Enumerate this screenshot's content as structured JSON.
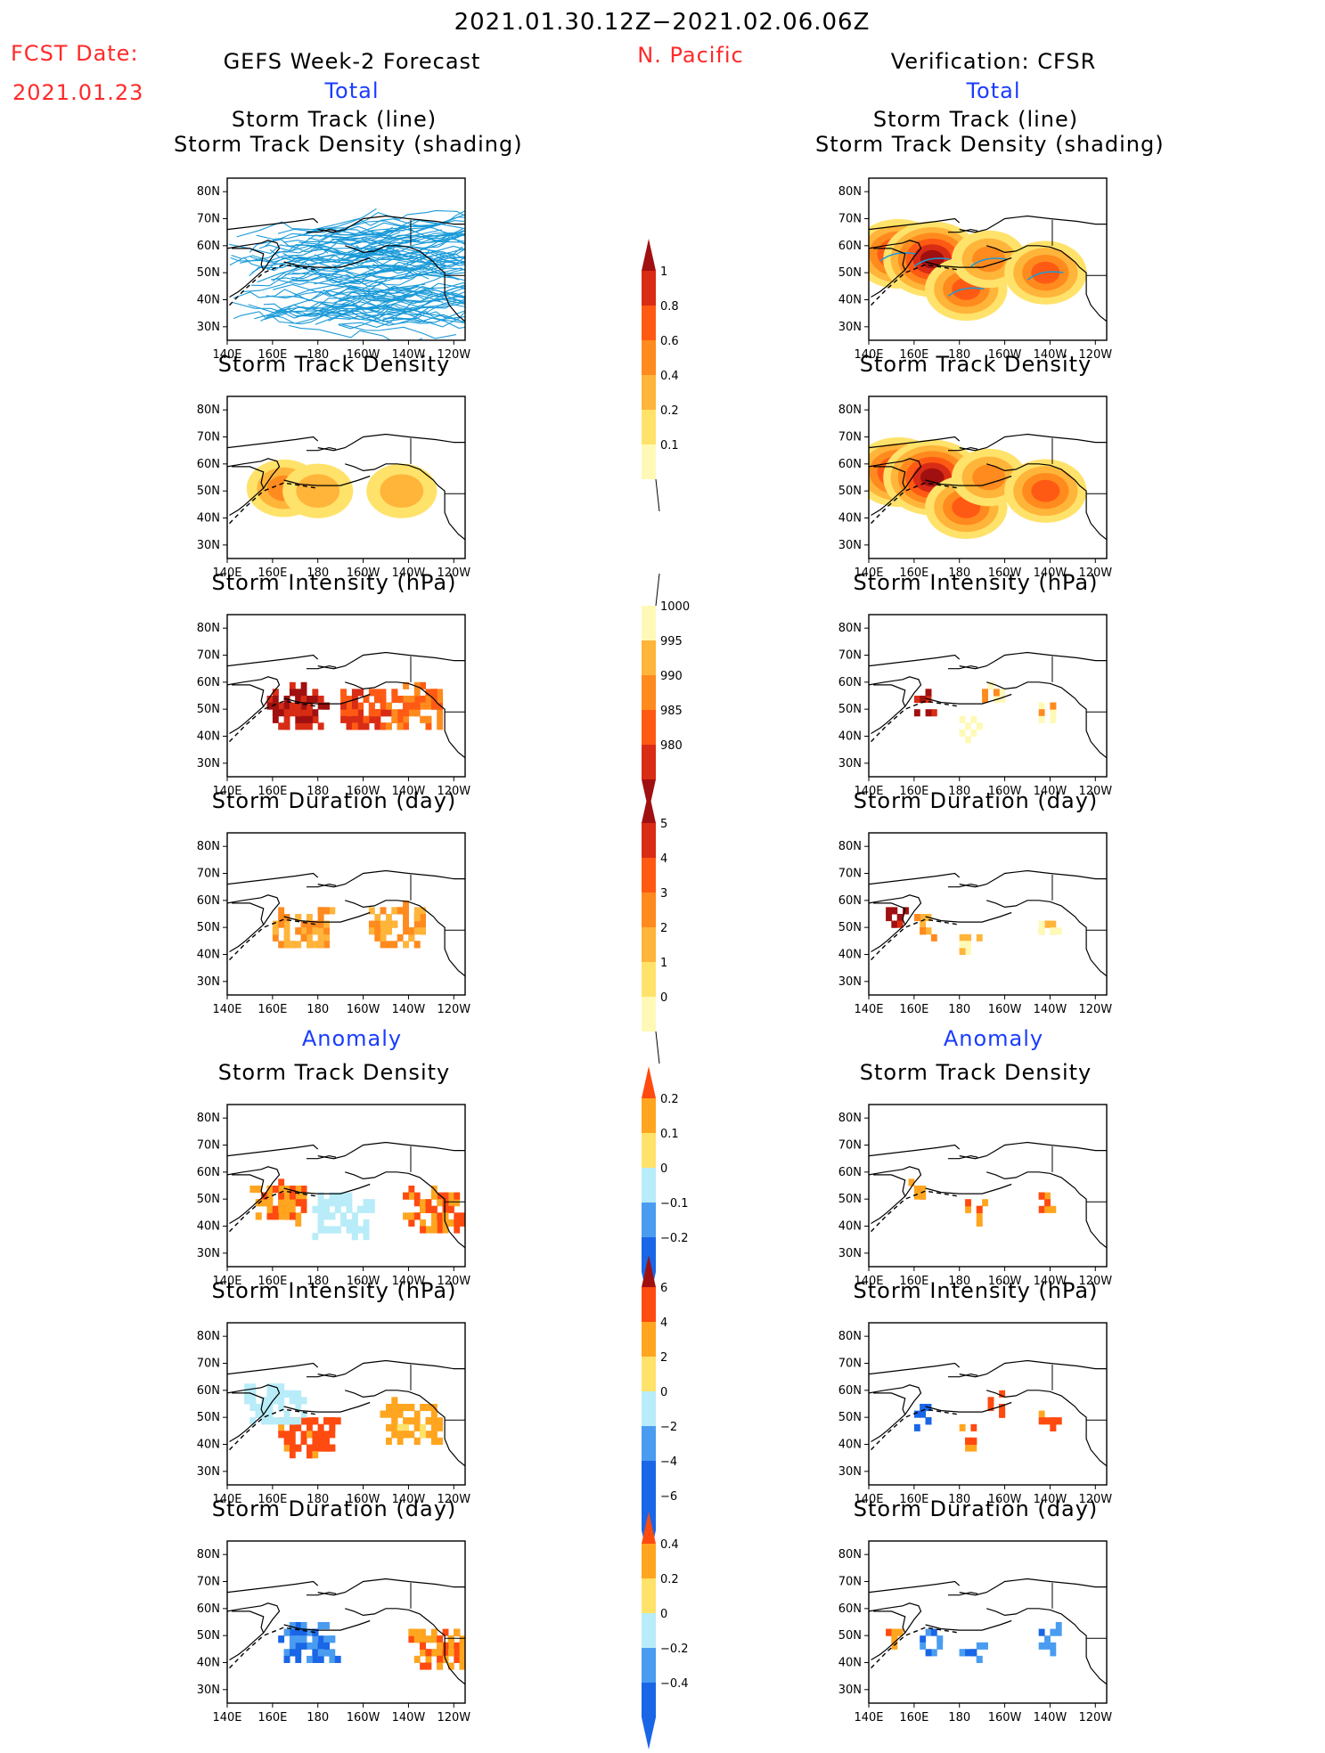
{
  "header": {
    "period": "2021.01.30.12Z−2021.02.06.06Z",
    "region": "N. Pacific",
    "fcst_label": "FCST Date:",
    "fcst_date": "2021.01.23",
    "left_title": "GEFS Week-2 Forecast",
    "right_title": "Verification: CFSR",
    "total_label": "Total",
    "anomaly_label": "Anomaly"
  },
  "panel_titles": {
    "track_line": "Storm Track (line)",
    "track_shading": "Storm Track Density (shading)",
    "density": "Storm Track Density",
    "intensity": "Storm Intensity (hPa)",
    "duration": "Storm Duration (day)"
  },
  "map_axes": {
    "lat_ticks": [
      "80N",
      "70N",
      "60N",
      "50N",
      "40N",
      "30N"
    ],
    "lon_ticks": [
      "140E",
      "160E",
      "180",
      "160W",
      "140W",
      "120W"
    ]
  },
  "colors": {
    "total_warm": [
      "#fff9b8",
      "#ffe26a",
      "#ffb43a",
      "#ff8a1e",
      "#ff5a14",
      "#d92c14",
      "#a01010"
    ],
    "anomaly": [
      "#1966e6",
      "#4a9cf0",
      "#b8ecf8",
      "#ffffff",
      "#ffe26a",
      "#ffa51f",
      "#ff4a10",
      "#a01010"
    ],
    "track_line": "#1a9ad8"
  },
  "chart_data": [
    {
      "type": "heatmap",
      "id": "fcst_total_density_line",
      "title": "Storm Track (line) Storm Track Density (shading)",
      "column": "GEFS Week-2 Forecast",
      "section": "Total",
      "xlim": [
        "140E",
        "115W"
      ],
      "ylim": [
        25,
        85
      ],
      "note": "dense spaghetti of storm tracks 25N–75N across the basin; density ~0.1–0.2"
    },
    {
      "type": "heatmap",
      "id": "fcst_total_density",
      "title": "Storm Track Density",
      "column": "GEFS Week-2 Forecast",
      "section": "Total",
      "levels": [
        0.1,
        0.2,
        0.4,
        0.6,
        0.8,
        1
      ],
      "blobs": [
        {
          "lon": 165,
          "lat": 51,
          "value": 0.4
        },
        {
          "lon": 180,
          "lat": 50,
          "value": 0.3
        },
        {
          "lon": 217,
          "lat": 50,
          "value": 0.3
        }
      ]
    },
    {
      "type": "heatmap",
      "id": "fcst_total_intensity",
      "title": "Storm Intensity (hPa)",
      "column": "GEFS Week-2 Forecast",
      "section": "Total",
      "levels": [
        1000,
        995,
        990,
        985,
        980
      ],
      "blobs": [
        {
          "lon": 170,
          "lat": 52,
          "value": 980
        },
        {
          "lon": 200,
          "lat": 51,
          "value": 985
        },
        {
          "lon": 222,
          "lat": 52,
          "value": 990
        }
      ]
    },
    {
      "type": "heatmap",
      "id": "fcst_total_duration",
      "title": "Storm Duration (day)",
      "column": "GEFS Week-2 Forecast",
      "section": "Total",
      "levels": [
        0,
        1,
        2,
        3,
        4,
        5
      ],
      "blobs": [
        {
          "lon": 172,
          "lat": 51,
          "value": 2
        },
        {
          "lon": 215,
          "lat": 52,
          "value": 2
        }
      ]
    },
    {
      "type": "heatmap",
      "id": "fcst_anom_density",
      "title": "Storm Track Density",
      "column": "GEFS Week-2 Forecast",
      "section": "Anomaly",
      "levels": [
        -0.2,
        -0.1,
        0,
        0.1,
        0.2
      ],
      "blobs": [
        {
          "lon": 162,
          "lat": 50,
          "value": 0.2
        },
        {
          "lon": 230,
          "lat": 47,
          "value": 0.2
        },
        {
          "lon": 190,
          "lat": 45,
          "value": -0.05
        }
      ]
    },
    {
      "type": "heatmap",
      "id": "fcst_anom_intensity",
      "title": "Storm Intensity (hPa)",
      "column": "GEFS Week-2 Forecast",
      "section": "Anomaly",
      "levels": [
        -6,
        -4,
        -2,
        0,
        2,
        4,
        6
      ],
      "blobs": [
        {
          "lon": 175,
          "lat": 45,
          "value": 6
        },
        {
          "lon": 160,
          "lat": 56,
          "value": -1
        },
        {
          "lon": 220,
          "lat": 50,
          "value": 3
        }
      ]
    },
    {
      "type": "heatmap",
      "id": "fcst_anom_duration",
      "title": "Storm Duration (day)",
      "column": "GEFS Week-2 Forecast",
      "section": "Anomaly",
      "levels": [
        -0.4,
        -0.2,
        0,
        0.2,
        0.4
      ],
      "blobs": [
        {
          "lon": 175,
          "lat": 49,
          "value": -0.4
        },
        {
          "lon": 232,
          "lat": 47,
          "value": 0.4
        }
      ]
    },
    {
      "type": "heatmap",
      "id": "cfsr_total_density_line",
      "title": "Storm Track (line) Storm Track Density (shading)",
      "column": "Verification: CFSR",
      "section": "Total",
      "blobs": [
        {
          "lon": 153,
          "lat": 57,
          "value": 0.8
        },
        {
          "lon": 168,
          "lat": 55,
          "value": 1.0
        },
        {
          "lon": 183,
          "lat": 44,
          "value": 0.6
        },
        {
          "lon": 193,
          "lat": 55,
          "value": 0.4
        },
        {
          "lon": 218,
          "lat": 50,
          "value": 0.6
        }
      ]
    },
    {
      "type": "heatmap",
      "id": "cfsr_total_density",
      "title": "Storm Track Density",
      "column": "Verification: CFSR",
      "section": "Total",
      "blobs": [
        {
          "lon": 153,
          "lat": 57,
          "value": 0.8
        },
        {
          "lon": 168,
          "lat": 55,
          "value": 1.0
        },
        {
          "lon": 183,
          "lat": 44,
          "value": 0.6
        },
        {
          "lon": 193,
          "lat": 55,
          "value": 0.4
        },
        {
          "lon": 218,
          "lat": 50,
          "value": 0.6
        }
      ]
    },
    {
      "type": "heatmap",
      "id": "cfsr_total_intensity",
      "title": "Storm Intensity (hPa)",
      "column": "Verification: CFSR",
      "section": "Total",
      "blobs": [
        {
          "lon": 163,
          "lat": 54,
          "value": 980
        },
        {
          "lon": 183,
          "lat": 44,
          "value": 1000
        },
        {
          "lon": 193,
          "lat": 56,
          "value": 995
        },
        {
          "lon": 218,
          "lat": 50,
          "value": 995
        }
      ]
    },
    {
      "type": "heatmap",
      "id": "cfsr_total_duration",
      "title": "Storm Duration (day)",
      "column": "Verification: CFSR",
      "section": "Total",
      "blobs": [
        {
          "lon": 150,
          "lat": 55,
          "value": 5
        },
        {
          "lon": 163,
          "lat": 52,
          "value": 2
        },
        {
          "lon": 183,
          "lat": 44,
          "value": 1
        },
        {
          "lon": 218,
          "lat": 50,
          "value": 1
        }
      ]
    },
    {
      "type": "heatmap",
      "id": "cfsr_anom_density",
      "title": "Storm Track Density",
      "column": "Verification: CFSR",
      "section": "Anomaly",
      "blobs": [
        {
          "lon": 160,
          "lat": 55,
          "value": 0.2
        },
        {
          "lon": 185,
          "lat": 46,
          "value": 0.2
        },
        {
          "lon": 218,
          "lat": 50,
          "value": 0.2
        }
      ]
    },
    {
      "type": "heatmap",
      "id": "cfsr_anom_intensity",
      "title": "Storm Intensity (hPa)",
      "column": "Verification: CFSR",
      "section": "Anomaly",
      "blobs": [
        {
          "lon": 162,
          "lat": 52,
          "value": -6
        },
        {
          "lon": 183,
          "lat": 43,
          "value": 6
        },
        {
          "lon": 195,
          "lat": 56,
          "value": 6
        },
        {
          "lon": 218,
          "lat": 50,
          "value": 6
        }
      ]
    },
    {
      "type": "heatmap",
      "id": "cfsr_anom_duration",
      "title": "Storm Duration (day)",
      "column": "Verification: CFSR",
      "section": "Anomaly",
      "blobs": [
        {
          "lon": 150,
          "lat": 52,
          "value": 0.4
        },
        {
          "lon": 166,
          "lat": 50,
          "value": -0.4
        },
        {
          "lon": 185,
          "lat": 44,
          "value": -0.4
        },
        {
          "lon": 218,
          "lat": 50,
          "value": -0.4
        }
      ]
    }
  ],
  "colorbars": {
    "density_total": {
      "labels": [
        "1",
        "0.8",
        "0.6",
        "0.4",
        "0.2",
        "0.1"
      ]
    },
    "intensity_total": {
      "labels": [
        "1000",
        "995",
        "990",
        "985",
        "980"
      ]
    },
    "duration_total": {
      "labels": [
        "5",
        "4",
        "3",
        "2",
        "1",
        "0"
      ]
    },
    "density_anom": {
      "labels": [
        "0.2",
        "0.1",
        "0",
        "−0.1",
        "−0.2"
      ]
    },
    "intensity_anom": {
      "labels": [
        "6",
        "4",
        "2",
        "0",
        "−2",
        "−4",
        "−6"
      ]
    },
    "duration_anom": {
      "labels": [
        "0.4",
        "0.2",
        "0",
        "−0.2",
        "−0.4"
      ]
    }
  }
}
